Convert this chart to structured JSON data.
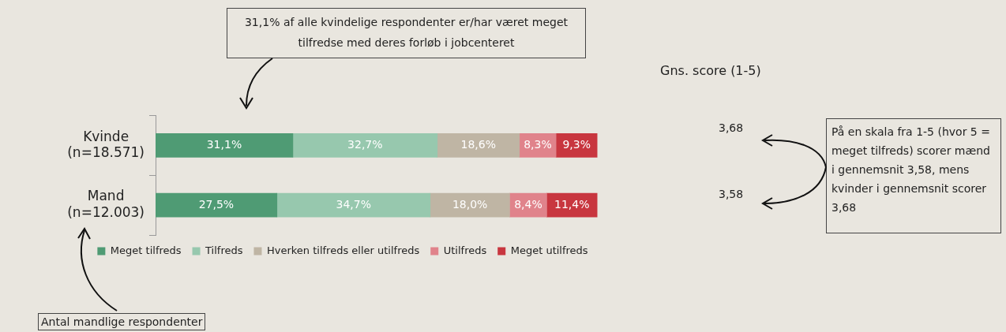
{
  "chart_data": {
    "type": "bar",
    "orientation": "horizontal",
    "stacked": true,
    "legend": "bottom",
    "categories": [
      "Kvinde\n(n=18.571)",
      "Mand\n(n=12.003)"
    ],
    "series": [
      {
        "name": "Meget tilfreds",
        "color": "#4f9b74",
        "values": [
          31.1,
          27.5
        ],
        "value_labels": [
          "31,1%",
          "27,5%"
        ]
      },
      {
        "name": "Tilfreds",
        "color": "#97c8ae",
        "values": [
          32.7,
          34.7
        ],
        "value_labels": [
          "32,7%",
          "34,7%"
        ]
      },
      {
        "name": "Hverken tilfreds eller utilfreds",
        "color": "#bfb5a4",
        "values": [
          18.6,
          18.0
        ],
        "value_labels": [
          "18,6%",
          "18,0%"
        ]
      },
      {
        "name": "Utilfreds",
        "color": "#e0838b",
        "values": [
          8.3,
          8.4
        ],
        "value_labels": [
          "8,3%",
          "8,4%"
        ]
      },
      {
        "name": "Meget utilfreds",
        "color": "#c8363f",
        "values": [
          9.3,
          11.4
        ],
        "value_labels": [
          "9,3%",
          "11,4%"
        ]
      }
    ],
    "annotations": [
      "31,1% af alle kvindelige respondenter er/har været meget tilfredse med deres forløb i jobcenteret",
      "Gns. score (1-5)",
      "3,68",
      "3,58",
      "På en skala fra 1-5 (hvor 5 = meget tilfreds) scorer mænd i gennemsnit 3,58, mens kvinder i gennemsnit scorer 3,68",
      "Antal mandlige respondenter"
    ]
  }
}
